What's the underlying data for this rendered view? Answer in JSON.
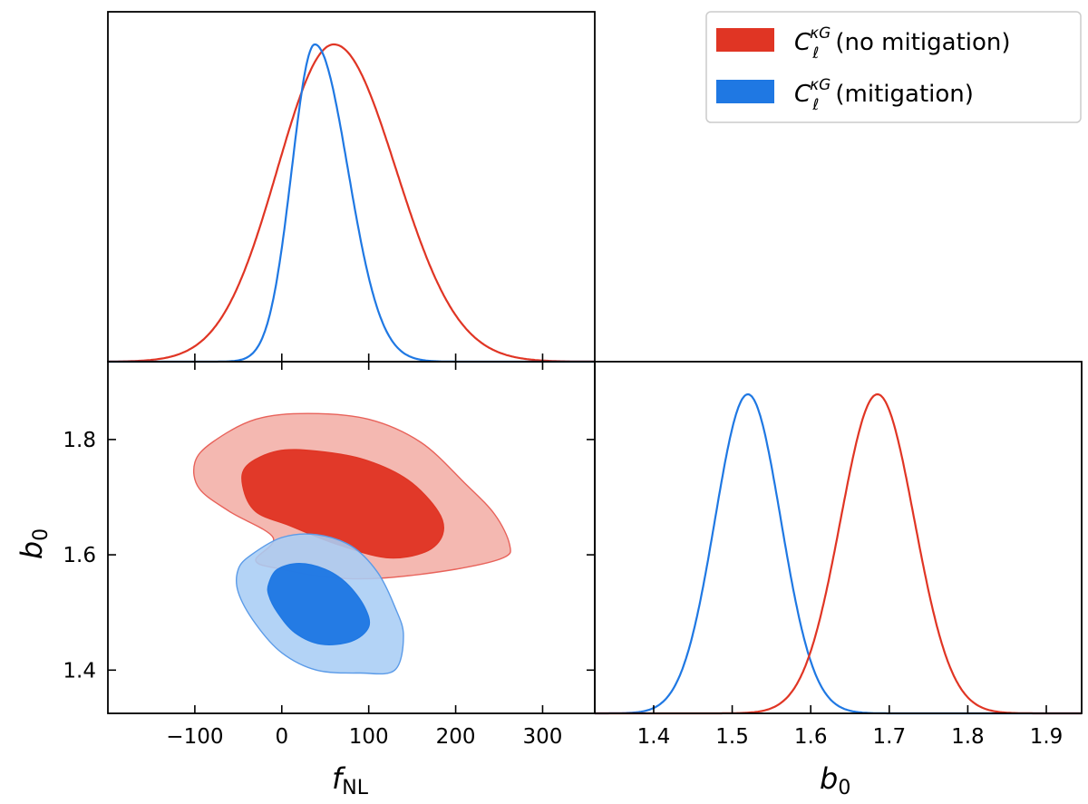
{
  "chart_data": [
    {
      "panel": "fNL-marginal",
      "type": "line",
      "xlim": [
        -200,
        360
      ],
      "series": [
        {
          "name": "no mitigation",
          "color": "#e03524",
          "mean": 60,
          "sigma": 70,
          "skew_left": 0.93,
          "skew_right": 1.02
        },
        {
          "name": "mitigation",
          "color": "#1f78e3",
          "mean": 38,
          "sigma": 34,
          "skew_left": 0.78,
          "skew_right": 1.12
        }
      ]
    },
    {
      "panel": "fNL-b0-contours",
      "type": "area",
      "xlabel": "f",
      "xlabel_sub": "NL",
      "ylabel": "b",
      "ylabel_sub": "0",
      "xlim": [
        -200,
        360
      ],
      "ylim": [
        1.325,
        1.935
      ],
      "xticks": [
        -100,
        0,
        100,
        200,
        300
      ],
      "xtick_labels": [
        "−100",
        "0",
        "100",
        "200",
        "300"
      ],
      "yticks": [
        1.4,
        1.6,
        1.8
      ],
      "ytick_labels": [
        "1.4",
        "1.6",
        "1.8"
      ],
      "series": [
        {
          "name": "no mitigation",
          "color": "#e03524",
          "outer_fill": "#f3aea6",
          "outer_edge": "#e8625a",
          "outer": [
            [
              -100,
              1.76
            ],
            [
              -80,
              1.795
            ],
            [
              -30,
              1.835
            ],
            [
              30,
              1.845
            ],
            [
              100,
              1.835
            ],
            [
              160,
              1.795
            ],
            [
              210,
              1.725
            ],
            [
              245,
              1.67
            ],
            [
              262,
              1.618
            ],
            [
              255,
              1.595
            ],
            [
              200,
              1.575
            ],
            [
              120,
              1.56
            ],
            [
              60,
              1.56
            ],
            [
              0,
              1.575
            ],
            [
              -30,
              1.59
            ],
            [
              -10,
              1.63
            ],
            [
              -60,
              1.675
            ],
            [
              -95,
              1.715
            ]
          ],
          "inner": [
            [
              -45,
              1.72
            ],
            [
              -40,
              1.755
            ],
            [
              -5,
              1.78
            ],
            [
              40,
              1.78
            ],
            [
              95,
              1.765
            ],
            [
              145,
              1.73
            ],
            [
              180,
              1.675
            ],
            [
              185,
              1.635
            ],
            [
              165,
              1.605
            ],
            [
              120,
              1.595
            ],
            [
              60,
              1.62
            ],
            [
              10,
              1.65
            ],
            [
              -30,
              1.675
            ]
          ]
        },
        {
          "name": "mitigation",
          "color": "#1f78e3",
          "outer_fill": "#a9cdf5",
          "outer_edge": "#5b9be8",
          "outer": [
            [
              -50,
              1.575
            ],
            [
              -35,
              1.6
            ],
            [
              0,
              1.63
            ],
            [
              40,
              1.635
            ],
            [
              80,
              1.615
            ],
            [
              110,
              1.57
            ],
            [
              130,
              1.51
            ],
            [
              140,
              1.46
            ],
            [
              130,
              1.4
            ],
            [
              90,
              1.395
            ],
            [
              40,
              1.4
            ],
            [
              0,
              1.43
            ],
            [
              -30,
              1.48
            ],
            [
              -50,
              1.535
            ]
          ],
          "inner": [
            [
              -15,
              1.55
            ],
            [
              -5,
              1.575
            ],
            [
              20,
              1.585
            ],
            [
              50,
              1.575
            ],
            [
              75,
              1.55
            ],
            [
              95,
              1.51
            ],
            [
              100,
              1.475
            ],
            [
              80,
              1.45
            ],
            [
              45,
              1.445
            ],
            [
              15,
              1.465
            ],
            [
              -5,
              1.5
            ],
            [
              -15,
              1.53
            ]
          ]
        }
      ]
    },
    {
      "panel": "b0-marginal",
      "type": "line",
      "xlabel": "b",
      "xlabel_sub": "0",
      "xlim": [
        1.325,
        1.945
      ],
      "xticks": [
        1.4,
        1.5,
        1.6,
        1.7,
        1.8,
        1.9
      ],
      "xtick_labels": [
        "1.4",
        "1.5",
        "1.6",
        "1.7",
        "1.8",
        "1.9"
      ],
      "series": [
        {
          "name": "mitigation",
          "color": "#1f78e3",
          "mean": 1.52,
          "sigma": 0.042,
          "skew_left": 1.0,
          "skew_right": 1.0
        },
        {
          "name": "no mitigation",
          "color": "#e03524",
          "mean": 1.685,
          "sigma": 0.047,
          "skew_left": 1.0,
          "skew_right": 1.0
        }
      ]
    }
  ],
  "legend": {
    "position": "top-right",
    "items": [
      {
        "color": "#e03524",
        "symbol": "C",
        "sub": "ℓ",
        "sup": "κG",
        "label": "(no mitigation)"
      },
      {
        "color": "#1f78e3",
        "symbol": "C",
        "sub": "ℓ",
        "sup": "κG",
        "label": "(mitigation)"
      }
    ]
  }
}
